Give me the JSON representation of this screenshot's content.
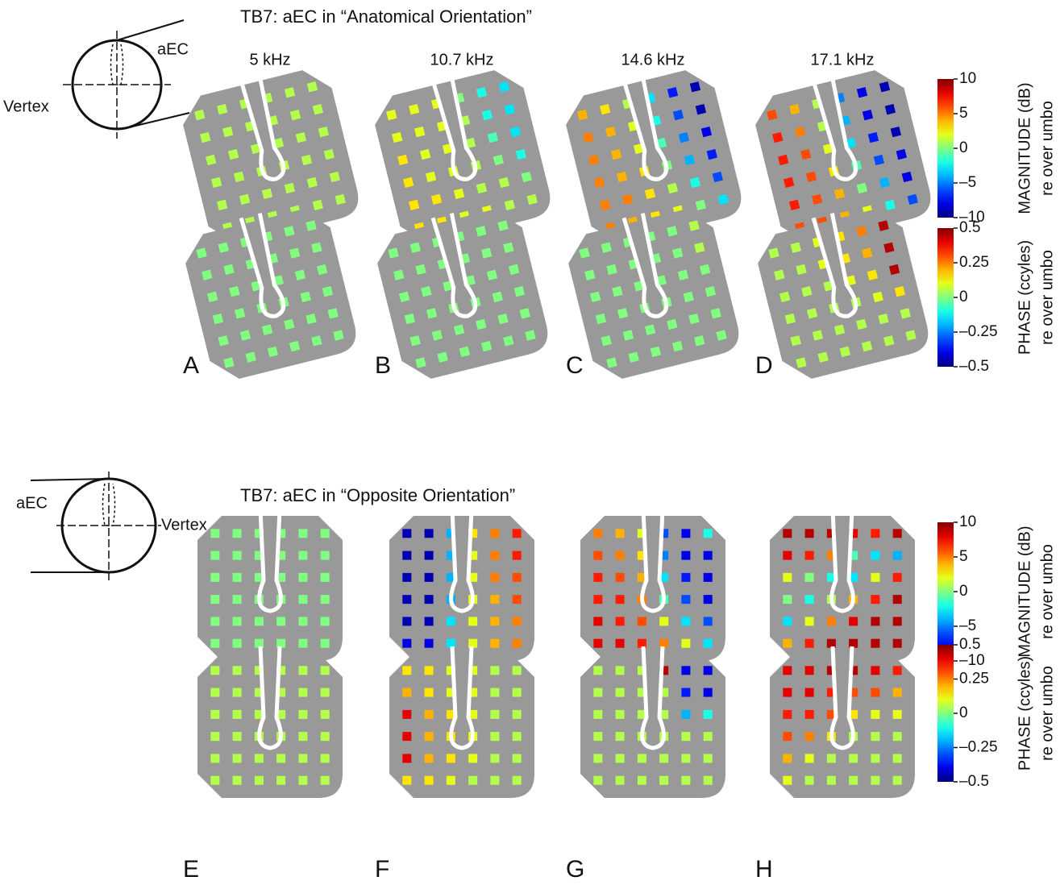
{
  "sections": [
    {
      "title": "TB7: aEC in “Anatomical Orientation”",
      "diagram_labels": [
        "aEC",
        "Vertex"
      ],
      "frequencies": [
        "5 kHz",
        "10.7 kHz",
        "14.6 kHz",
        "17.1 kHz"
      ],
      "rows": [
        {
          "colorbar": {
            "label": "MAGNITUDE (dB)",
            "sublabel": "re over umbo",
            "lim": [
              -10,
              10
            ],
            "ticks": [
              10,
              5,
              0,
              {
                "value": -5,
                "label": "–5"
              },
              {
                "value": -10,
                "label": "–10"
              }
            ]
          },
          "panels": [
            {
              "grid": [
                [
                  1,
                  1,
                  1,
                  1,
                  1,
                  1
                ],
                [
                  1,
                  1,
                  1,
                  1,
                  1,
                  1
                ],
                [
                  1,
                  1,
                  1,
                  1,
                  1,
                  1
                ],
                [
                  1,
                  1,
                  1,
                  1,
                  1,
                  1
                ],
                [
                  1,
                  1,
                  1,
                  1,
                  1,
                  1
                ],
                [
                  1,
                  1,
                  1,
                  1,
                  1,
                  1
                ]
              ]
            },
            {
              "grid": [
                [
                  2,
                  2,
                  2,
                  0,
                  -2,
                  -3
                ],
                [
                  2,
                  2,
                  2,
                  1,
                  -2,
                  -3
                ],
                [
                  3,
                  2,
                  2,
                  1,
                  -1,
                  -3
                ],
                [
                  3,
                  2,
                  2,
                  1,
                  0,
                  -2
                ],
                [
                  3,
                  3,
                  2,
                  1,
                  1,
                  0
                ],
                [
                  3,
                  3,
                  2,
                  2,
                  1,
                  1
                ]
              ]
            },
            {
              "grid": [
                [
                  4,
                  3,
                  1,
                  -3,
                  -7,
                  -9
                ],
                [
                  5,
                  4,
                  2,
                  -2,
                  -6,
                  -9
                ],
                [
                  5,
                  4,
                  2,
                  -1,
                  -5,
                  -8
                ],
                [
                  5,
                  4,
                  3,
                  0,
                  -4,
                  -7
                ],
                [
                  5,
                  5,
                  3,
                  1,
                  -2,
                  -6
                ],
                [
                  5,
                  4,
                  3,
                  2,
                  0,
                  -3
                ]
              ]
            },
            {
              "grid": [
                [
                  6,
                  4,
                  1,
                  -5,
                  -8,
                  -9
                ],
                [
                  7,
                  5,
                  1,
                  -4,
                  -8,
                  -9
                ],
                [
                  7,
                  6,
                  2,
                  -3,
                  -7,
                  -9
                ],
                [
                  7,
                  6,
                  3,
                  -1,
                  -6,
                  -8
                ],
                [
                  7,
                  6,
                  4,
                  0,
                  -4,
                  -8
                ],
                [
                  6,
                  6,
                  4,
                  2,
                  -2,
                  -6
                ]
              ]
            }
          ]
        },
        {
          "colorbar": {
            "label": "PHASE (ccyles)",
            "sublabel": "re over umbo",
            "lim": [
              -0.5,
              0.5
            ],
            "ticks": [
              0.5,
              0.25,
              0,
              {
                "value": -0.25,
                "label": "–0.25"
              },
              {
                "value": -0.5,
                "label": "–0.5"
              }
            ]
          },
          "panels": [
            {
              "letter": "A",
              "grid": [
                [
                  0,
                  0,
                  0,
                  0,
                  0,
                  0
                ],
                [
                  0,
                  0,
                  0,
                  0,
                  0,
                  0
                ],
                [
                  0,
                  0,
                  0,
                  0,
                  0,
                  0
                ],
                [
                  0,
                  0,
                  0,
                  0,
                  0,
                  0
                ],
                [
                  0,
                  0,
                  0,
                  0,
                  0,
                  0
                ],
                [
                  0,
                  0,
                  0,
                  0,
                  0,
                  0
                ]
              ]
            },
            {
              "letter": "B",
              "grid": [
                [
                  0,
                  0,
                  0,
                  0,
                  0,
                  0
                ],
                [
                  0,
                  0,
                  0,
                  0,
                  0,
                  0
                ],
                [
                  0,
                  0,
                  0,
                  0,
                  0,
                  0
                ],
                [
                  0,
                  0,
                  0,
                  0,
                  0,
                  0
                ],
                [
                  0,
                  0,
                  0,
                  0,
                  0,
                  0
                ],
                [
                  0,
                  0,
                  0,
                  0,
                  0,
                  0
                ]
              ]
            },
            {
              "letter": "C",
              "grid": [
                [
                  0,
                  0,
                  0,
                  0,
                  0,
                  0.05
                ],
                [
                  0,
                  0,
                  0,
                  0,
                  0,
                  0.05
                ],
                [
                  0,
                  0,
                  0,
                  0,
                  0,
                  0
                ],
                [
                  0,
                  0,
                  0,
                  0,
                  0,
                  0
                ],
                [
                  0,
                  0,
                  0,
                  0,
                  0,
                  0
                ],
                [
                  0,
                  0,
                  0,
                  0,
                  0,
                  0
                ]
              ]
            },
            {
              "letter": "D",
              "grid": [
                [
                  0.05,
                  0.05,
                  0.1,
                  0.15,
                  0.25,
                  0.45
                ],
                [
                  0.05,
                  0.05,
                  0.1,
                  0.15,
                  0.2,
                  0.45
                ],
                [
                  0.05,
                  0.05,
                  0.05,
                  0.1,
                  0.15,
                  0.45
                ],
                [
                  0.05,
                  0.05,
                  0.05,
                  0.05,
                  0.1,
                  0.15
                ],
                [
                  0.05,
                  0.05,
                  0.05,
                  0.05,
                  0.05,
                  0.05
                ],
                [
                  0.05,
                  0.05,
                  0.05,
                  0.05,
                  0.05,
                  0.05
                ]
              ]
            }
          ]
        }
      ]
    },
    {
      "title": "TB7: aEC in “Opposite Orientation”",
      "diagram_labels": [
        "aEC",
        "Vertex"
      ],
      "rows": [
        {
          "colorbar": {
            "label": "MAGNITUDE (dB)",
            "sublabel": "re over umbo",
            "lim": [
              -10,
              10
            ],
            "ticks": [
              10,
              5,
              0,
              {
                "value": -5,
                "label": "–5"
              },
              {
                "value": -10,
                "label": "–10"
              }
            ]
          },
          "panels": [
            {
              "grid": [
                [
                  0,
                  0,
                  0,
                  0,
                  0,
                  0
                ],
                [
                  0,
                  0,
                  0,
                  0,
                  0,
                  0
                ],
                [
                  0,
                  0,
                  0,
                  0,
                  0,
                  0
                ],
                [
                  0,
                  0,
                  0,
                  0,
                  0,
                  0
                ],
                [
                  0,
                  0,
                  0,
                  0,
                  0,
                  0
                ],
                [
                  0,
                  0,
                  0,
                  0,
                  0,
                  0
                ]
              ]
            },
            {
              "grid": [
                [
                  -9,
                  -9,
                  -4,
                  3,
                  5,
                  7
                ],
                [
                  -9,
                  -9,
                  -4,
                  2,
                  5,
                  7
                ],
                [
                  -9,
                  -9,
                  -4,
                  2,
                  5,
                  6
                ],
                [
                  -9,
                  -9,
                  -4,
                  2,
                  4,
                  6
                ],
                [
                  -9,
                  -9,
                  -3,
                  2,
                  4,
                  5
                ],
                [
                  -8,
                  -8,
                  -3,
                  2,
                  4,
                  5
                ]
              ]
            },
            {
              "grid": [
                [
                  5,
                  4,
                  2,
                  -6,
                  -8,
                  -2
                ],
                [
                  6,
                  5,
                  3,
                  -5,
                  -8,
                  -8
                ],
                [
                  7,
                  6,
                  4,
                  -3,
                  -7,
                  -8
                ],
                [
                  7,
                  7,
                  5,
                  -1,
                  -6,
                  -8
                ],
                [
                  8,
                  7,
                  6,
                  2,
                  -3,
                  -6
                ],
                [
                  8,
                  8,
                  7,
                  5,
                  2,
                  -3
                ]
              ]
            },
            {
              "grid": [
                [
                  9,
                  9,
                  9,
                  8,
                  7,
                  9
                ],
                [
                  8,
                  7,
                  5,
                  -1,
                  -3,
                  -4
                ],
                [
                  2,
                  0,
                  -2,
                  -3,
                  2,
                  7
                ],
                [
                  0,
                  -2,
                  1,
                  4,
                  7,
                  9
                ],
                [
                  -3,
                  2,
                  5,
                  8,
                  9,
                  9
                ],
                [
                  4,
                  7,
                  9,
                  9,
                  9,
                  9
                ]
              ]
            }
          ]
        },
        {
          "colorbar": {
            "label": "PHASE (ccyles)",
            "sublabel": "re over umbo",
            "lim": [
              -0.5,
              0.5
            ],
            "ticks": [
              0.5,
              0.25,
              0,
              {
                "value": -0.25,
                "label": "–0.25"
              },
              {
                "value": -0.5,
                "label": "–0.5"
              }
            ]
          },
          "panels": [
            {
              "letter": "E",
              "grid": [
                [
                  0.05,
                  0.05,
                  0.05,
                  0.05,
                  0.05,
                  0.05
                ],
                [
                  0.05,
                  0.05,
                  0.05,
                  0.05,
                  0.05,
                  0.05
                ],
                [
                  0.05,
                  0.05,
                  0.05,
                  0.05,
                  0.05,
                  0.05
                ],
                [
                  0.05,
                  0.05,
                  0.05,
                  0.05,
                  0.05,
                  0.05
                ],
                [
                  0.05,
                  0.05,
                  0.05,
                  0.05,
                  0.05,
                  0.05
                ],
                [
                  0.05,
                  0.05,
                  0.05,
                  0.05,
                  0.05,
                  0.05
                ]
              ]
            },
            {
              "letter": "F",
              "grid": [
                [
                  0.15,
                  0.15,
                  0.1,
                  0.1,
                  0.05,
                  0.05
                ],
                [
                  0.2,
                  0.15,
                  0.1,
                  0.1,
                  0.05,
                  0.05
                ],
                [
                  0.4,
                  0.2,
                  0.15,
                  0.1,
                  0.05,
                  0.05
                ],
                [
                  0.4,
                  0.2,
                  0.15,
                  0.1,
                  0.05,
                  0.05
                ],
                [
                  0.4,
                  0.2,
                  0.15,
                  0.1,
                  0.05,
                  0.05
                ],
                [
                  0.15,
                  0.15,
                  0.1,
                  0.05,
                  0.05,
                  0.05
                ]
              ]
            },
            {
              "letter": "G",
              "grid": [
                [
                  0.05,
                  0.05,
                  0.05,
                  0.45,
                  -0.4,
                  -0.4
                ],
                [
                  0.05,
                  0.05,
                  0.05,
                  0.05,
                  -0.35,
                  -0.4
                ],
                [
                  0.05,
                  0.05,
                  0.05,
                  0.05,
                  -0.2,
                  -0.1
                ],
                [
                  0.05,
                  0.05,
                  0.05,
                  0.05,
                  0.05,
                  0.05
                ],
                [
                  0.05,
                  0.05,
                  0.05,
                  0.05,
                  0.05,
                  0.05
                ],
                [
                  0.05,
                  0.05,
                  0.05,
                  0.05,
                  0.05,
                  0.05
                ]
              ]
            },
            {
              "letter": "H",
              "grid": [
                [
                  0.4,
                  0.4,
                  0.45,
                  0.45,
                  0.4,
                  0.35
                ],
                [
                  0.4,
                  0.4,
                  0.35,
                  0.3,
                  0.3,
                  0.2
                ],
                [
                  0.35,
                  0.35,
                  0.3,
                  0.15,
                  0.1,
                  0.1
                ],
                [
                  0.3,
                  0.25,
                  0.15,
                  0.05,
                  0.05,
                  0.05
                ],
                [
                  0.2,
                  0.1,
                  0.05,
                  0.05,
                  0.05,
                  0.05
                ],
                [
                  0.1,
                  0.05,
                  0.05,
                  0.05,
                  0.05,
                  0.05
                ]
              ]
            }
          ]
        }
      ]
    }
  ]
}
